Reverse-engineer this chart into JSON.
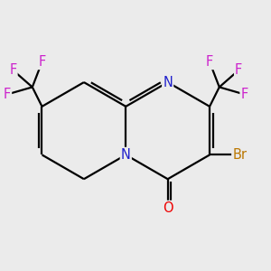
{
  "background_color": "#ebebeb",
  "bond_color": "#000000",
  "atom_colors": {
    "N": "#2020cc",
    "O": "#ee0000",
    "F": "#cc22cc",
    "Br": "#bb7700",
    "C": "#000000"
  },
  "font_size_atom": 10.5,
  "lw": 1.6
}
